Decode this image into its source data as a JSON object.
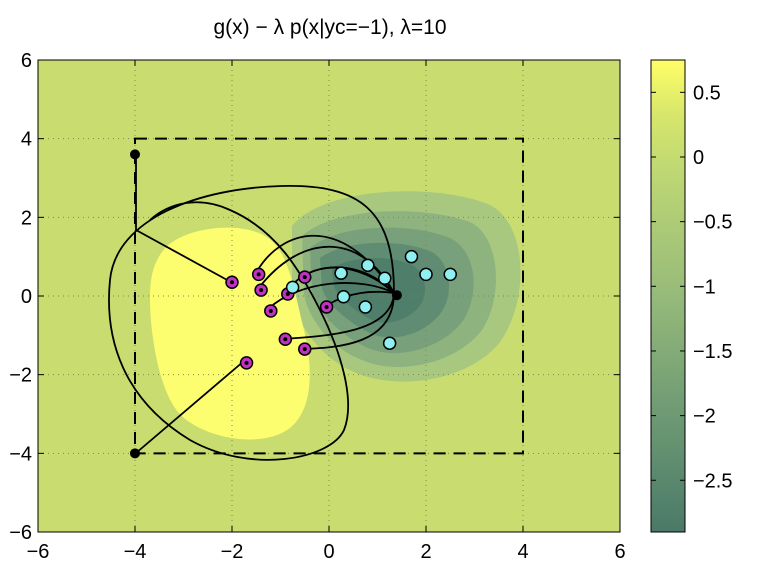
{
  "chart_data": {
    "type": "contour",
    "title": "g(x) − λ p(x|yc=−1), λ=10",
    "xlabel": "",
    "ylabel": "",
    "xlim": [
      -6,
      6
    ],
    "ylim": [
      -6,
      6
    ],
    "x_ticks": [
      -6,
      -4,
      -2,
      0,
      2,
      4,
      6
    ],
    "y_ticks": [
      -6,
      -4,
      -2,
      0,
      2,
      4,
      6
    ],
    "x_tick_labels": [
      "−6",
      "−4",
      "−2",
      "0",
      "2",
      "4",
      "6"
    ],
    "y_tick_labels": [
      "−6",
      "−4",
      "−2",
      "0",
      "2",
      "4",
      "6"
    ],
    "grid": true,
    "colorbar": {
      "range": [
        -2.9,
        0.75
      ],
      "ticks": [
        0.5,
        0,
        -0.5,
        -1,
        -1.5,
        -2,
        -2.5
      ],
      "tick_labels": [
        "0.5",
        "0",
        "−0.5",
        "−1",
        "−1.5",
        "−2",
        "−2.5"
      ],
      "color_low": "#4a7a68",
      "color_high": "#ffff66"
    },
    "colors": {
      "background_field": "#c8dc70",
      "positive_region": "#fdfd70",
      "contour_levels": [
        "#a8c880",
        "#8fb37e",
        "#78a07a",
        "#5f8c72",
        "#4a7a68"
      ],
      "marker_magenta": "#c032c0",
      "marker_cyan": "#8ef0f0",
      "start_point": "#000000"
    },
    "bounding_box": {
      "x": [
        -4,
        4
      ],
      "y": [
        -4,
        4
      ]
    },
    "magenta_points": [
      [
        -2.0,
        0.35
      ],
      [
        -1.45,
        0.55
      ],
      [
        -1.4,
        0.15
      ],
      [
        -1.2,
        -0.38
      ],
      [
        -0.85,
        0.05
      ],
      [
        -0.5,
        0.48
      ],
      [
        -0.05,
        -0.28
      ],
      [
        -0.9,
        -1.1
      ],
      [
        -0.5,
        -1.35
      ],
      [
        -1.7,
        -1.7
      ]
    ],
    "cyan_points": [
      [
        -0.75,
        0.22
      ],
      [
        0.25,
        0.58
      ],
      [
        0.8,
        0.78
      ],
      [
        1.7,
        1.0
      ],
      [
        2.0,
        0.55
      ],
      [
        2.5,
        0.55
      ],
      [
        1.15,
        0.45
      ],
      [
        0.3,
        -0.02
      ],
      [
        0.75,
        -0.28
      ],
      [
        1.25,
        -1.2
      ]
    ],
    "start_points": [
      [
        -4.0,
        3.6
      ],
      [
        -4.0,
        -4.0
      ]
    ],
    "attractor_point": [
      1.4,
      0.02
    ]
  }
}
